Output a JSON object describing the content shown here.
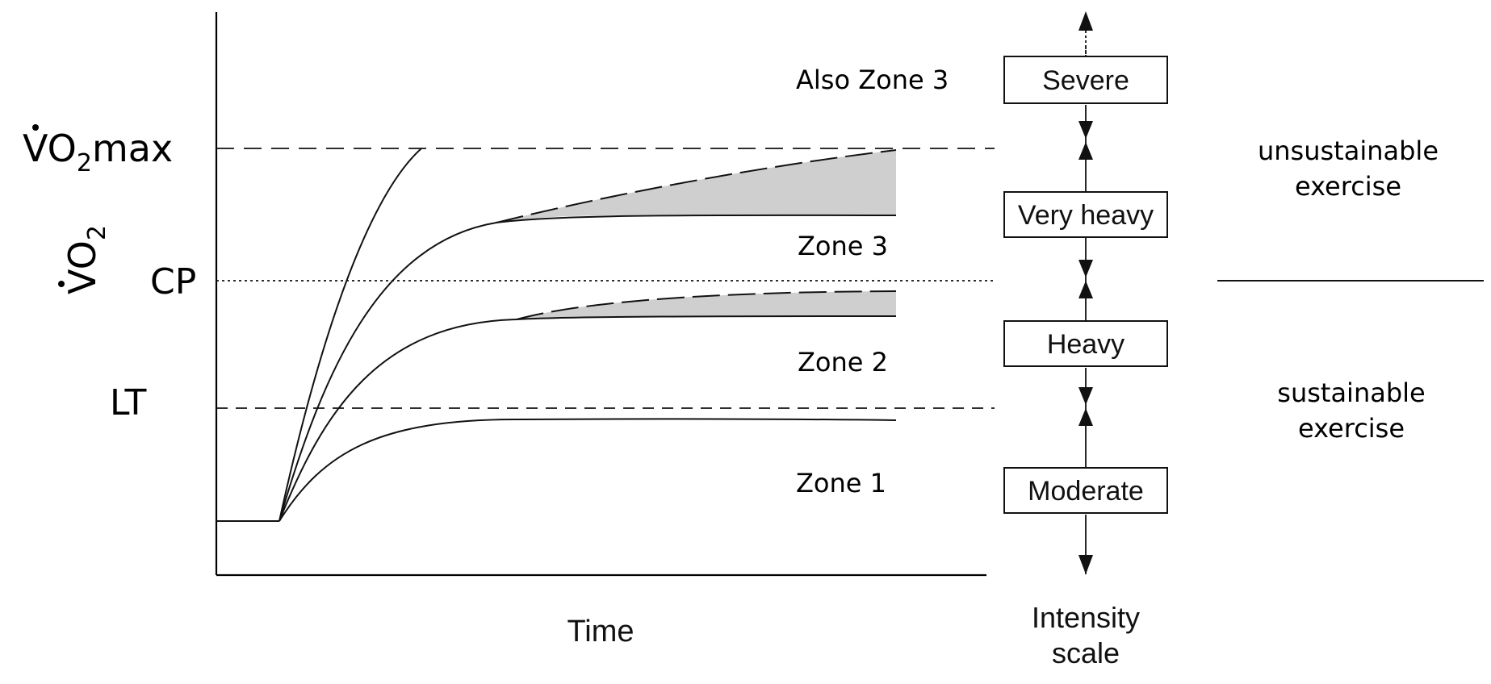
{
  "y_axis": {
    "label_main": "V",
    "label_sub": "O",
    "label_subscript": "2"
  },
  "x_axis": {
    "label": "Time"
  },
  "thresholds": {
    "vo2max": {
      "label_main": "VO",
      "label_subscript": "2",
      "label_suffix": "max"
    },
    "cp": {
      "label": "CP"
    },
    "lt": {
      "label": "LT"
    }
  },
  "zones": {
    "also_zone3": "Also Zone 3",
    "zone3": "Zone 3",
    "zone2": "Zone 2",
    "zone1": "Zone 1"
  },
  "intensity_scale": {
    "label_line1": "Intensity",
    "label_line2": "scale",
    "domains": {
      "severe": "Severe",
      "very_heavy": "Very heavy",
      "heavy": "Heavy",
      "moderate": "Moderate"
    }
  },
  "exercise": {
    "unsustainable_line1": "unsustainable",
    "unsustainable_line2": "exercise",
    "sustainable_line1": "sustainable",
    "sustainable_line2": "exercise"
  },
  "colors": {
    "line": "#111111",
    "shade": "#cfcfcf",
    "background": "#ffffff"
  }
}
